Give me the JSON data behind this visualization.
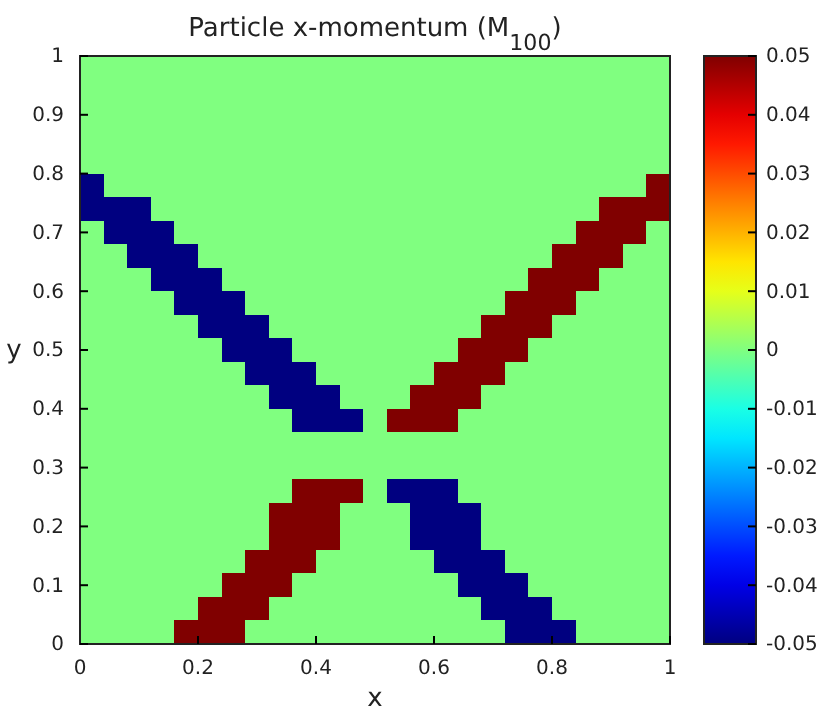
{
  "chart_data": {
    "type": "heatmap",
    "title": "Particle x-momentum (M$_{100}$)",
    "xlabel": "x",
    "ylabel": "y",
    "xlim": [
      0,
      1
    ],
    "ylim": [
      0,
      1
    ],
    "xticks": [
      0,
      0.2,
      0.4,
      0.6,
      0.8,
      1
    ],
    "yticks": [
      0,
      0.1,
      0.2,
      0.3,
      0.4,
      0.5,
      0.6,
      0.7,
      0.8,
      0.9,
      1
    ],
    "clim": [
      -0.05,
      0.05
    ],
    "cticks": [
      -0.05,
      -0.04,
      -0.03,
      -0.02,
      -0.01,
      0,
      0.01,
      0.02,
      0.03,
      0.04,
      0.05
    ],
    "cells": [
      [
        0,
        0,
        0,
        0,
        0,
        0,
        0,
        0,
        0,
        0,
        0,
        0,
        0,
        0,
        0,
        0,
        0,
        0,
        0,
        0,
        0,
        0,
        0,
        0,
        0
      ],
      [
        0,
        0,
        0,
        0,
        0,
        0,
        0,
        0,
        0,
        0,
        0,
        0,
        0,
        0,
        0,
        0,
        0,
        0,
        0,
        0,
        0,
        0,
        0,
        0,
        0
      ],
      [
        0,
        0,
        0,
        0,
        0,
        0,
        0,
        0,
        0,
        0,
        0,
        0,
        0,
        0,
        0,
        0,
        0,
        0,
        0,
        0,
        0,
        0,
        0,
        0,
        0
      ],
      [
        0,
        0,
        0,
        0,
        0,
        0,
        0,
        0,
        0,
        0,
        0,
        0,
        0,
        0,
        0,
        0,
        0,
        0,
        0,
        0,
        0,
        0,
        0,
        0,
        0
      ],
      [
        0,
        0,
        0,
        0,
        0,
        0,
        0,
        0,
        0,
        0,
        0,
        0,
        0,
        0,
        0,
        0,
        0,
        0,
        0,
        0,
        0,
        0,
        0,
        0,
        0
      ],
      [
        -0.05,
        0,
        0,
        0,
        0,
        0,
        0,
        0,
        0,
        0,
        0,
        0,
        0,
        0,
        0,
        0,
        0,
        0,
        0,
        0,
        0,
        0,
        0,
        0,
        0.05
      ],
      [
        -0.05,
        -0.05,
        -0.05,
        0,
        0,
        0,
        0,
        0,
        0,
        0,
        0,
        0,
        0,
        0,
        0,
        0,
        0,
        0,
        0,
        0,
        0,
        0,
        0.05,
        0.05,
        0.05
      ],
      [
        0,
        -0.05,
        -0.05,
        -0.05,
        0,
        0,
        0,
        0,
        0,
        0,
        0,
        0,
        0,
        0,
        0,
        0,
        0,
        0,
        0,
        0,
        0,
        0.05,
        0.05,
        0.05,
        0
      ],
      [
        0,
        0,
        -0.05,
        -0.05,
        -0.05,
        0,
        0,
        0,
        0,
        0,
        0,
        0,
        0,
        0,
        0,
        0,
        0,
        0,
        0,
        0,
        0.05,
        0.05,
        0.05,
        0,
        0
      ],
      [
        0,
        0,
        0,
        -0.05,
        -0.05,
        -0.05,
        0,
        0,
        0,
        0,
        0,
        0,
        0,
        0,
        0,
        0,
        0,
        0,
        0,
        0.05,
        0.05,
        0.05,
        0,
        0,
        0
      ],
      [
        0,
        0,
        0,
        0,
        -0.05,
        -0.05,
        -0.05,
        0,
        0,
        0,
        0,
        0,
        0,
        0,
        0,
        0,
        0,
        0,
        0.05,
        0.05,
        0.05,
        0,
        0,
        0,
        0
      ],
      [
        0,
        0,
        0,
        0,
        0,
        -0.05,
        -0.05,
        -0.05,
        0,
        0,
        0,
        0,
        0,
        0,
        0,
        0,
        0,
        0.05,
        0.05,
        0.05,
        0,
        0,
        0,
        0,
        0
      ],
      [
        0,
        0,
        0,
        0,
        0,
        0,
        -0.05,
        -0.05,
        -0.05,
        0,
        0,
        0,
        0,
        0,
        0,
        0,
        0.05,
        0.05,
        0.05,
        0,
        0,
        0,
        0,
        0,
        0
      ],
      [
        0,
        0,
        0,
        0,
        0,
        0,
        0,
        -0.05,
        -0.05,
        -0.05,
        0,
        0,
        0,
        0,
        0,
        0.05,
        0.05,
        0.05,
        0,
        0,
        0,
        0,
        0,
        0,
        0
      ],
      [
        0,
        0,
        0,
        0,
        0,
        0,
        0,
        0,
        -0.05,
        -0.05,
        -0.05,
        0,
        0,
        0,
        0.05,
        0.05,
        0.05,
        0,
        0,
        0,
        0,
        0,
        0,
        0,
        0
      ],
      [
        0,
        0,
        0,
        0,
        0,
        0,
        0,
        0,
        0,
        -0.05,
        -0.05,
        -0.05,
        0,
        0.05,
        0.05,
        0.05,
        0,
        0,
        0,
        0,
        0,
        0,
        0,
        0,
        0
      ],
      [
        0,
        0,
        0,
        0,
        0,
        0,
        0,
        0,
        0,
        0,
        0,
        0,
        0,
        0,
        0,
        0,
        0,
        0,
        0,
        0,
        0,
        0,
        0,
        0,
        0
      ],
      [
        0,
        0,
        0,
        0,
        0,
        0,
        0,
        0,
        0,
        0,
        0,
        0,
        0,
        0,
        0,
        0,
        0,
        0,
        0,
        0,
        0,
        0,
        0,
        0,
        0
      ],
      [
        0,
        0,
        0,
        0,
        0,
        0,
        0,
        0,
        0,
        0.05,
        0.05,
        0.05,
        0,
        -0.05,
        -0.05,
        -0.05,
        0,
        0,
        0,
        0,
        0,
        0,
        0,
        0,
        0
      ],
      [
        0,
        0,
        0,
        0,
        0,
        0,
        0,
        0,
        0.05,
        0.05,
        0.05,
        0,
        0,
        0,
        -0.05,
        -0.05,
        -0.05,
        0,
        0,
        0,
        0,
        0,
        0,
        0,
        0
      ],
      [
        0,
        0,
        0,
        0,
        0,
        0,
        0,
        0,
        0.05,
        0.05,
        0.05,
        0,
        0,
        0,
        -0.05,
        -0.05,
        -0.05,
        0,
        0,
        0,
        0,
        0,
        0,
        0,
        0
      ],
      [
        0,
        0,
        0,
        0,
        0,
        0,
        0,
        0.05,
        0.05,
        0.05,
        0,
        0,
        0,
        0,
        0,
        -0.05,
        -0.05,
        -0.05,
        0,
        0,
        0,
        0,
        0,
        0,
        0
      ],
      [
        0,
        0,
        0,
        0,
        0,
        0,
        0.05,
        0.05,
        0.05,
        0,
        0,
        0,
        0,
        0,
        0,
        0,
        -0.05,
        -0.05,
        -0.05,
        0,
        0,
        0,
        0,
        0,
        0
      ],
      [
        0,
        0,
        0,
        0,
        0,
        0.05,
        0.05,
        0.05,
        0,
        0,
        0,
        0,
        0,
        0,
        0,
        0,
        0,
        -0.05,
        -0.05,
        -0.05,
        0,
        0,
        0,
        0,
        0
      ],
      [
        0,
        0,
        0,
        0,
        0.05,
        0.05,
        0.05,
        0,
        0,
        0,
        0,
        0,
        0,
        0,
        0,
        0,
        0,
        0,
        -0.05,
        -0.05,
        -0.05,
        0,
        0,
        0,
        0
      ]
    ]
  }
}
